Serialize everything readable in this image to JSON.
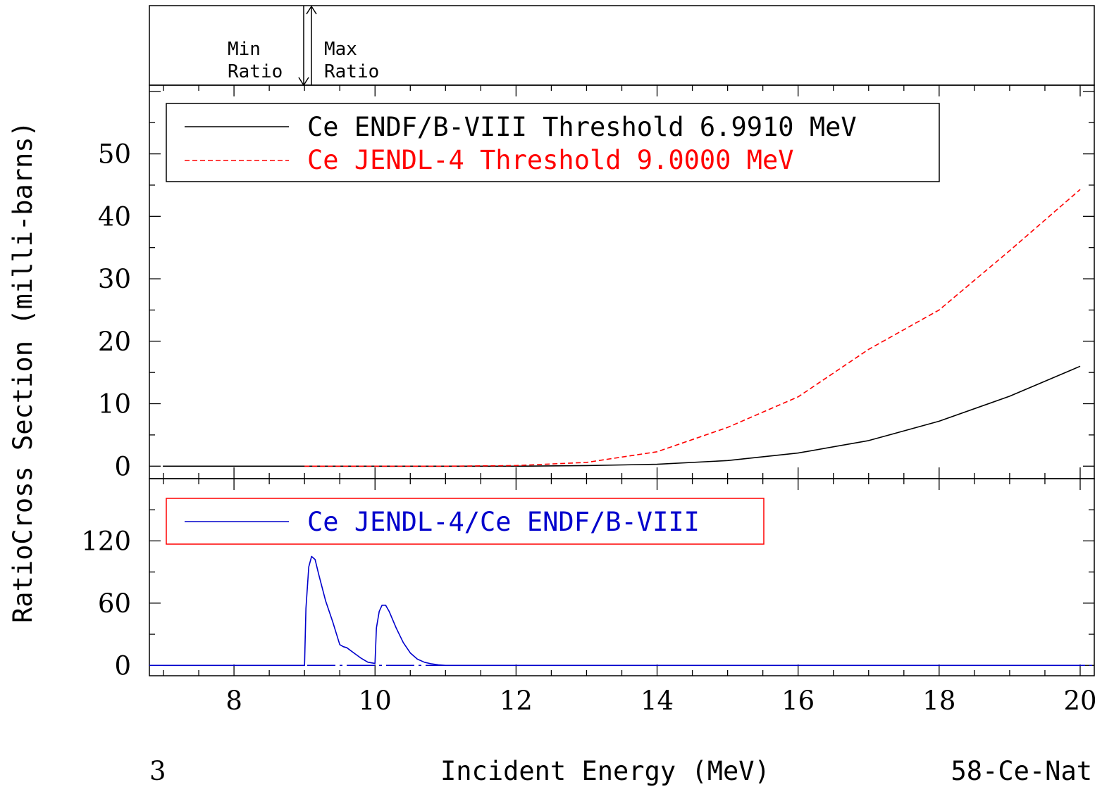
{
  "y_axis_label": "RatioCross Section (milli-barns)",
  "x_axis_label": "Incident Energy (MeV)",
  "footer_left": "3",
  "footer_right": "58-Ce-Nat",
  "ratio_band": {
    "min_label_1": "Min",
    "min_label_2": "Ratio",
    "max_label_1": "Max",
    "max_label_2": "Ratio"
  },
  "colors": {
    "endf": "#000000",
    "jendl": "#ff0000",
    "ratio": "#0000cc",
    "ratio_legend_border": "#ff0000"
  },
  "chart_data": [
    {
      "type": "line",
      "panel": "cross-section",
      "xlim": [
        6.8,
        20.2
      ],
      "ylim": [
        -2,
        61
      ],
      "x_ticks": [
        8,
        10,
        12,
        14,
        16,
        18,
        20
      ],
      "y_ticks": [
        0,
        10,
        20,
        30,
        40,
        50
      ],
      "legend_position": "top-left",
      "series": [
        {
          "name": "Ce ENDF/B-VIII Threshold 6.9910 MeV",
          "color": "#000000",
          "dash": "solid",
          "x": [
            6.991,
            9,
            10,
            11,
            12,
            13,
            14,
            15,
            16,
            17,
            18,
            19,
            20
          ],
          "y": [
            0,
            0,
            0,
            0,
            0,
            0.1,
            0.3,
            0.9,
            2.1,
            4.1,
            7.2,
            11.2,
            16.0
          ]
        },
        {
          "name": "Ce JENDL-4 Threshold 9.0000 MeV",
          "color": "#ff0000",
          "dash": "dashed",
          "x": [
            9,
            10,
            11,
            12,
            13,
            14,
            15,
            16,
            17,
            18,
            19,
            20
          ],
          "y": [
            0,
            0,
            0,
            0.1,
            0.6,
            2.3,
            6.2,
            11.1,
            18.7,
            25.0,
            34.5,
            44.3
          ]
        }
      ]
    },
    {
      "type": "line",
      "panel": "ratio",
      "xlim": [
        6.8,
        20.2
      ],
      "ylim": [
        -10,
        180
      ],
      "x_ticks": [
        8,
        10,
        12,
        14,
        16,
        18,
        20
      ],
      "y_ticks": [
        0,
        60,
        120
      ],
      "legend_position": "top-left",
      "series": [
        {
          "name": "Ce JENDL-4/Ce ENDF/B-VIII",
          "color": "#0000cc",
          "dash": "solid",
          "x": [
            6.991,
            8.99,
            9.0,
            9.02,
            9.06,
            9.1,
            9.15,
            9.2,
            9.3,
            9.4,
            9.5,
            9.55,
            9.6,
            9.7,
            9.8,
            9.9,
            9.99,
            10.0,
            10.02,
            10.06,
            10.1,
            10.15,
            10.2,
            10.3,
            10.4,
            10.5,
            10.6,
            10.7,
            10.8,
            10.9,
            11.0,
            12.0,
            14.0,
            16.0,
            18.0,
            20.0
          ],
          "y": [
            0,
            0,
            0,
            55,
            95,
            105,
            102,
            88,
            62,
            42,
            20,
            18,
            17,
            12,
            7,
            3,
            2,
            2,
            36,
            52,
            58,
            58,
            52,
            36,
            22,
            12,
            6,
            3,
            1.5,
            0.5,
            0,
            0,
            0,
            0,
            0,
            0
          ]
        }
      ]
    }
  ]
}
